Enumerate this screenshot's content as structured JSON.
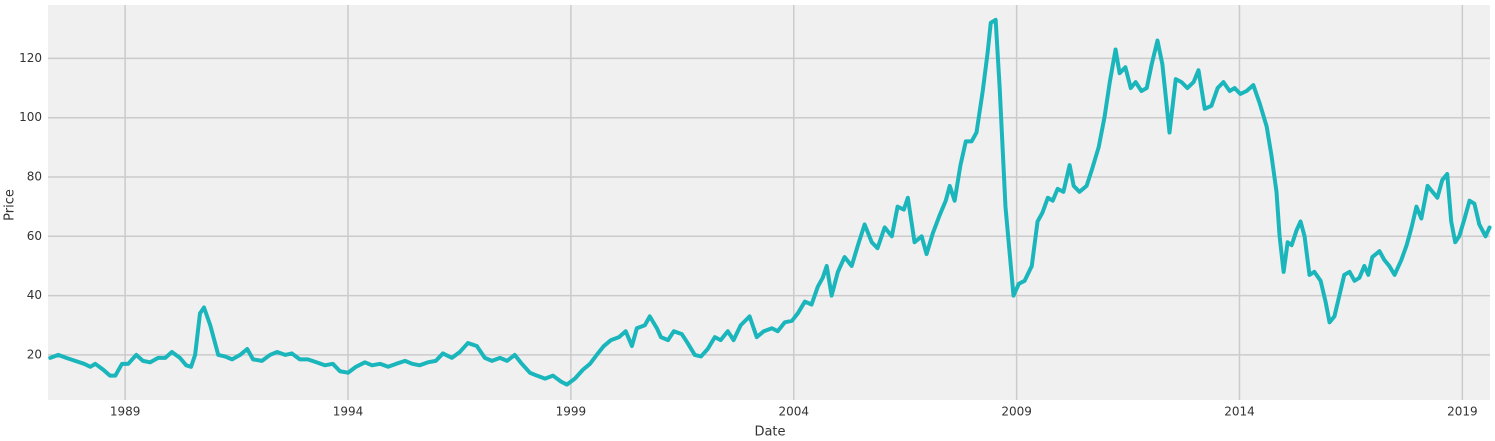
{
  "chart_data": {
    "type": "line",
    "x_label": "Date",
    "y_label": "Price",
    "x": [
      1987.32,
      1987.5,
      1987.68,
      1987.88,
      1988.08,
      1988.22,
      1988.33,
      1988.51,
      1988.66,
      1988.78,
      1988.93,
      1989.07,
      1989.25,
      1989.4,
      1989.56,
      1989.74,
      1989.9,
      1990.05,
      1990.23,
      1990.37,
      1990.48,
      1990.57,
      1990.68,
      1990.77,
      1990.91,
      1991.09,
      1991.24,
      1991.4,
      1991.58,
      1991.74,
      1991.87,
      1992.07,
      1992.25,
      1992.41,
      1992.59,
      1992.74,
      1992.92,
      1993.1,
      1993.3,
      1993.48,
      1993.66,
      1993.82,
      1994.0,
      1994.18,
      1994.38,
      1994.54,
      1994.72,
      1994.9,
      1995.08,
      1995.28,
      1995.44,
      1995.61,
      1995.79,
      1995.97,
      1996.13,
      1996.33,
      1996.51,
      1996.69,
      1996.89,
      1997.07,
      1997.23,
      1997.41,
      1997.57,
      1997.74,
      1997.9,
      1998.08,
      1998.24,
      1998.42,
      1998.6,
      1998.78,
      1998.91,
      1999.09,
      1999.27,
      1999.43,
      1999.58,
      1999.74,
      1999.9,
      2000.08,
      2000.23,
      2000.37,
      2000.48,
      2000.66,
      2000.77,
      2000.93,
      2001.02,
      2001.18,
      2001.31,
      2001.49,
      2001.62,
      2001.78,
      2001.92,
      2002.07,
      2002.23,
      2002.36,
      2002.52,
      2002.65,
      2002.81,
      2003.01,
      2003.17,
      2003.33,
      2003.51,
      2003.64,
      2003.8,
      2003.96,
      2004.09,
      2004.25,
      2004.4,
      2004.54,
      2004.65,
      2004.74,
      2004.85,
      2004.99,
      2005.14,
      2005.3,
      2005.44,
      2005.59,
      2005.75,
      2005.88,
      2006.04,
      2006.2,
      2006.33,
      2006.47,
      2006.56,
      2006.71,
      2006.87,
      2006.98,
      2007.12,
      2007.27,
      2007.41,
      2007.5,
      2007.61,
      2007.74,
      2007.86,
      2007.99,
      2008.1,
      2008.24,
      2008.35,
      2008.42,
      2008.53,
      2008.62,
      2008.75,
      2008.87,
      2008.93,
      2009.05,
      2009.18,
      2009.34,
      2009.47,
      2009.58,
      2009.7,
      2009.81,
      2009.92,
      2010.05,
      2010.19,
      2010.28,
      2010.41,
      2010.57,
      2010.7,
      2010.84,
      2010.97,
      2011.09,
      2011.22,
      2011.31,
      2011.44,
      2011.56,
      2011.67,
      2011.8,
      2011.92,
      2012.03,
      2012.16,
      2012.27,
      2012.43,
      2012.57,
      2012.7,
      2012.83,
      2012.97,
      2013.08,
      2013.22,
      2013.37,
      2013.51,
      2013.64,
      2013.78,
      2013.89,
      2014.02,
      2014.16,
      2014.31,
      2014.45,
      2014.61,
      2014.72,
      2014.83,
      2014.9,
      2014.99,
      2015.08,
      2015.17,
      2015.28,
      2015.37,
      2015.46,
      2015.57,
      2015.68,
      2015.82,
      2015.93,
      2016.02,
      2016.13,
      2016.24,
      2016.35,
      2016.47,
      2016.58,
      2016.69,
      2016.8,
      2016.89,
      2016.98,
      2017.14,
      2017.25,
      2017.36,
      2017.48,
      2017.63,
      2017.75,
      2017.86,
      2017.97,
      2018.08,
      2018.22,
      2018.33,
      2018.44,
      2018.55,
      2018.66,
      2018.75,
      2018.84,
      2018.93,
      2019.05,
      2019.16,
      2019.27,
      2019.38,
      2019.52,
      2019.61
    ],
    "values": [
      19,
      20,
      19,
      18,
      17,
      16,
      17,
      15,
      13,
      13,
      17,
      17,
      20,
      18,
      17.5,
      19,
      19,
      21,
      19,
      16.5,
      16,
      20,
      34,
      36,
      30,
      20,
      19.5,
      18.5,
      20,
      22,
      18.5,
      18,
      20,
      21,
      20,
      20.5,
      18.5,
      18.5,
      17.5,
      16.5,
      17,
      14.5,
      14,
      16,
      17.5,
      16.5,
      17,
      16,
      17,
      18,
      17,
      16.5,
      17.5,
      18,
      20.5,
      19,
      21,
      24,
      23,
      19,
      18,
      19,
      18,
      20,
      17,
      14,
      13,
      12,
      13,
      11,
      10,
      12,
      15,
      17,
      20,
      23,
      25,
      26,
      28,
      23,
      29,
      30,
      33,
      29,
      26,
      25,
      28,
      27,
      24,
      20,
      19.5,
      22,
      26,
      25,
      28,
      25,
      30,
      33,
      26,
      28,
      29,
      28,
      31,
      31.5,
      34,
      38,
      37,
      43,
      46,
      50,
      40,
      48,
      53,
      50,
      57,
      64,
      58,
      56,
      63,
      60,
      70,
      69,
      73,
      58,
      60,
      54,
      61,
      67,
      72,
      77,
      72,
      84,
      92,
      92,
      95,
      109,
      122,
      132,
      133,
      110,
      70,
      50,
      40,
      44,
      45,
      50,
      65,
      68,
      73,
      72,
      76,
      75,
      84,
      77,
      75,
      77,
      83,
      90,
      100,
      112,
      123,
      115,
      117,
      110,
      112,
      109,
      110,
      118,
      126,
      118,
      95,
      113,
      112,
      110,
      112,
      116,
      103,
      104,
      110,
      112,
      109,
      110,
      108,
      109,
      111,
      105,
      97,
      87,
      75,
      60,
      48,
      58,
      57,
      62,
      65,
      60,
      47,
      48,
      45,
      38,
      31,
      33,
      40,
      47,
      48,
      45,
      46,
      50,
      47,
      53,
      55,
      52,
      50,
      47,
      52,
      57,
      63,
      70,
      66,
      77,
      75,
      73,
      79,
      81,
      65,
      58,
      60,
      66,
      72,
      71,
      64,
      60,
      63
    ],
    "color": "#1bb6bc",
    "xlim": [
      1987.27,
      2019.62
    ],
    "xticks": [
      1989,
      1994,
      1999,
      2004,
      2009,
      2014,
      2019
    ],
    "ylim": [
      4.8,
      138
    ],
    "yticks": [
      20,
      40,
      60,
      80,
      100,
      120
    ],
    "grid": true
  }
}
